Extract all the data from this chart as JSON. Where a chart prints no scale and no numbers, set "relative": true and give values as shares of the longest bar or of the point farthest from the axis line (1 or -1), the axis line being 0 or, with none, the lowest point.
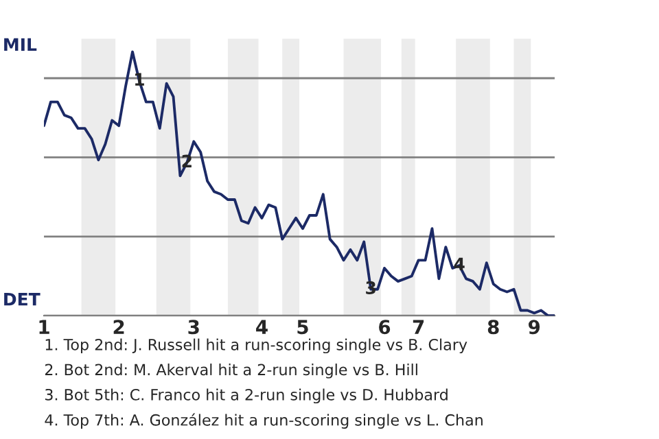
{
  "chart_data": {
    "type": "line",
    "relative": true,
    "categories": [
      "1",
      null,
      null,
      null,
      null,
      null,
      null,
      null,
      null,
      null,
      null,
      "2",
      null,
      null,
      null,
      null,
      null,
      null,
      null,
      null,
      null,
      null,
      "3",
      null,
      null,
      null,
      null,
      null,
      null,
      null,
      null,
      null,
      "4",
      null,
      null,
      null,
      null,
      null,
      "5",
      null,
      null,
      null,
      null,
      null,
      null,
      null,
      null,
      null,
      null,
      null,
      "6",
      null,
      null,
      null,
      null,
      "7",
      null,
      null,
      null,
      null,
      null,
      null,
      null,
      null,
      null,
      null,
      "8",
      null,
      null,
      null,
      null,
      null,
      "9",
      null,
      null,
      null
    ],
    "series": [
      {
        "color": "#1c2a66",
        "values": [
          0.72,
          0.81,
          0.81,
          0.76,
          0.75,
          0.71,
          0.71,
          0.67,
          0.59,
          0.65,
          0.74,
          0.72,
          0.87,
          1,
          0.89,
          0.81,
          0.81,
          0.71,
          0.88,
          0.83,
          0.53,
          0.58,
          0.66,
          0.62,
          0.51,
          0.47,
          0.46,
          0.44,
          0.44,
          0.36,
          0.35,
          0.41,
          0.37,
          0.42,
          0.41,
          0.29,
          0.33,
          0.37,
          0.33,
          0.38,
          0.38,
          0.46,
          0.29,
          0.26,
          0.21,
          0.25,
          0.21,
          0.28,
          0.1,
          0.1,
          0.18,
          0.15,
          0.13,
          0.14,
          0.15,
          0.21,
          0.21,
          0.33,
          0.14,
          0.26,
          0.18,
          0.19,
          0.14,
          0.13,
          0.1,
          0.2,
          0.12,
          0.1,
          0.09,
          0.1,
          0.02,
          0.02,
          0.01,
          0.02,
          0,
          0
        ]
      }
    ],
    "grid": "y",
    "annotations": [
      "MIL",
      "DET",
      {
        "text": "1",
        "y": 0.89
      },
      {
        "text": "2",
        "y": 0.58
      },
      {
        "text": "3",
        "y": 0.1
      },
      {
        "text": "4",
        "y": 0.19
      },
      "1. Top 2nd: J. Russell hit a run-scoring single vs B. Clary",
      "2. Bot 2nd: M. Akerval hit a 2-run single vs B. Hill",
      "3. Bot 5th: C. Franco hit a 2-run single vs D. Hubbard",
      "4. Top 7th: A. González hit a run-scoring single vs L. Chan"
    ]
  }
}
